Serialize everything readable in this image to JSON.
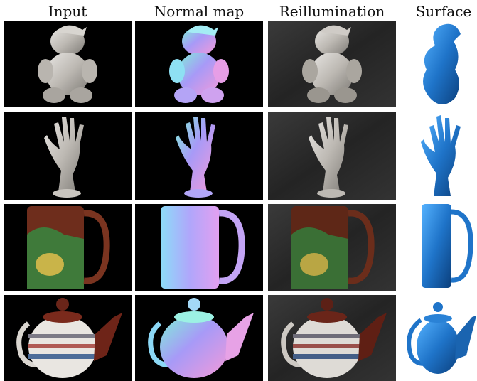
{
  "figure": {
    "columns": [
      "Input",
      "Normal map",
      "Reillumination",
      "Surface"
    ],
    "rows": [
      {
        "object": "ceramic-bear",
        "cells": [
          "input",
          "normal-map",
          "reillumination",
          "surface"
        ]
      },
      {
        "object": "ceramic-hand",
        "cells": [
          "input",
          "normal-map",
          "reillumination",
          "surface"
        ]
      },
      {
        "object": "painted-mug",
        "cells": [
          "input",
          "normal-map",
          "reillumination",
          "surface"
        ]
      },
      {
        "object": "striped-teapot",
        "cells": [
          "input",
          "normal-map",
          "reillumination",
          "surface"
        ]
      }
    ],
    "colors": {
      "input_background": "#000000",
      "reillumination_background": "#2b2b2b",
      "surface_blue": "#1f74c9",
      "normal_map_lilac": "#9a8cf5"
    }
  }
}
